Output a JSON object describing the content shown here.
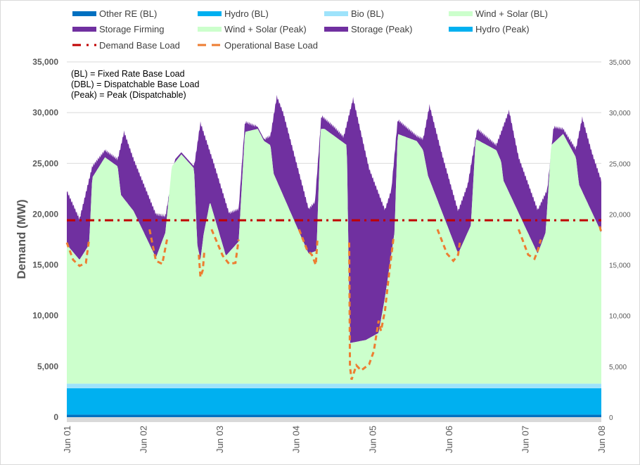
{
  "chart_data": {
    "type": "area",
    "stacked": true,
    "ylabel": "Demand (MW)",
    "ylim": [
      0,
      35000
    ],
    "y_ticks": [
      "0",
      "5,000",
      "10,000",
      "15,000",
      "20,000",
      "25,000",
      "30,000",
      "35,000"
    ],
    "y_ticks_right": [
      "0",
      "5,000",
      "10,000",
      "15,000",
      "20,000",
      "25,000",
      "30,000",
      "35,000"
    ],
    "x_ticks": [
      "Jun 01",
      "Jun 02",
      "Jun 03",
      "Jun 04",
      "Jun 05",
      "Jun 06",
      "Jun 07",
      "Jun 08"
    ],
    "xlim": [
      "Jun 01 00:00",
      "Jun 08 00:00"
    ],
    "grid": true,
    "legend_position": "top",
    "notes": [
      "(BL) = Fixed Rate Base Load",
      "(DBL) = Dispatchable Base Load",
      "(Peak) = Peak (Dispatchable)"
    ],
    "legend": [
      {
        "name": "Other RE (BL)",
        "color": "#0070c0",
        "style": "band"
      },
      {
        "name": "Hydro (BL)",
        "color": "#00b0f0",
        "style": "band"
      },
      {
        "name": "Bio (BL)",
        "color": "#9ee3fb",
        "style": "band"
      },
      {
        "name": "Wind + Solar (BL)",
        "color": "#ccffcc",
        "style": "band"
      },
      {
        "name": "Storage Firming",
        "color": "#7030a0",
        "style": "band"
      },
      {
        "name": "Wind + Solar (Peak)",
        "color": "#ccffcc",
        "style": "band"
      },
      {
        "name": "Storage (Peak)",
        "color": "#7030a0",
        "style": "band"
      },
      {
        "name": "Hydro (Peak)",
        "color": "#00b0f0",
        "style": "band"
      },
      {
        "name": "Demand Base Load",
        "color": "#c00000",
        "style": "dashdot"
      },
      {
        "name": "Operational Base Load",
        "color": "#ed7d31",
        "style": "dash"
      }
    ],
    "constant_series": [
      {
        "name": "Other RE (BL)",
        "value": 250
      },
      {
        "name": "Hydro (BL)",
        "value": 2600
      },
      {
        "name": "Bio (BL)",
        "value": 450
      }
    ],
    "stack_level_series": [
      {
        "name": "Wind + Solar (BL)",
        "points": [
          [
            "Jun 01 00:00",
            17000
          ],
          [
            "Jun 01 04:00",
            15500
          ],
          [
            "Jun 01 07:00",
            17000
          ],
          [
            "Jun 01 08:00",
            23600
          ],
          [
            "Jun 01 12:00",
            25600
          ],
          [
            "Jun 01 16:00",
            24700
          ],
          [
            "Jun 01 17:00",
            21900
          ],
          [
            "Jun 01 21:00",
            20300
          ],
          [
            "Jun 02 04:00",
            15700
          ],
          [
            "Jun 02 07:00",
            18200
          ],
          [
            "Jun 02 09:00",
            24700
          ],
          [
            "Jun 02 12:00",
            25900
          ],
          [
            "Jun 02 16:00",
            24500
          ],
          [
            "Jun 02 17:00",
            17000
          ],
          [
            "Jun 02 18:00",
            15500
          ],
          [
            "Jun 02 19:00",
            18000
          ],
          [
            "Jun 02 21:00",
            21200
          ],
          [
            "Jun 03 02:00",
            15900
          ],
          [
            "Jun 03 06:00",
            17300
          ],
          [
            "Jun 03 08:00",
            28100
          ],
          [
            "Jun 03 12:00",
            28400
          ],
          [
            "Jun 03 14:00",
            27200
          ],
          [
            "Jun 03 16:00",
            26800
          ],
          [
            "Jun 03 17:00",
            24000
          ],
          [
            "Jun 04 04:00",
            16100
          ],
          [
            "Jun 04 06:30",
            16400
          ],
          [
            "Jun 04 07:45",
            28400
          ],
          [
            "Jun 04 09:00",
            28400
          ],
          [
            "Jun 04 16:00",
            26800
          ],
          [
            "Jun 04 17:00",
            7300
          ],
          [
            "Jun 04 22:00",
            7600
          ],
          [
            "Jun 05 02:00",
            8300
          ],
          [
            "Jun 05 04:00",
            11800
          ],
          [
            "Jun 05 07:00",
            18200
          ],
          [
            "Jun 05 08:00",
            27900
          ],
          [
            "Jun 05 14:00",
            27200
          ],
          [
            "Jun 05 16:00",
            26300
          ],
          [
            "Jun 05 17:30",
            23800
          ],
          [
            "Jun 06 03:00",
            16100
          ],
          [
            "Jun 06 07:00",
            18900
          ],
          [
            "Jun 06 08:30",
            27400
          ],
          [
            "Jun 06 15:00",
            26300
          ],
          [
            "Jun 06 16:30",
            25200
          ],
          [
            "Jun 06 17:15",
            23300
          ],
          [
            "Jun 07 04:00",
            16100
          ],
          [
            "Jun 07 06:30",
            18200
          ],
          [
            "Jun 07 08:15",
            26800
          ],
          [
            "Jun 07 12:00",
            27900
          ],
          [
            "Jun 07 16:00",
            25600
          ],
          [
            "Jun 07 17:00",
            22900
          ],
          [
            "Jun 08 00:00",
            18200
          ]
        ]
      },
      {
        "name": "Storage Firming",
        "points": [
          [
            "Jun 01 00:00",
            22300
          ],
          [
            "Jun 01 04:00",
            19500
          ],
          [
            "Jun 01 08:00",
            24700
          ],
          [
            "Jun 01 12:00",
            26300
          ],
          [
            "Jun 01 16:00",
            25400
          ],
          [
            "Jun 01 18:00",
            28100
          ],
          [
            "Jun 01 21:00",
            25400
          ],
          [
            "Jun 02 04:00",
            20000
          ],
          [
            "Jun 02 07:00",
            19800
          ],
          [
            "Jun 02 10:00",
            25400
          ],
          [
            "Jun 02 12:00",
            26100
          ],
          [
            "Jun 02 16:00",
            24700
          ],
          [
            "Jun 02 18:00",
            29000
          ],
          [
            "Jun 02 22:00",
            25200
          ],
          [
            "Jun 03 03:00",
            20100
          ],
          [
            "Jun 03 06:00",
            20500
          ],
          [
            "Jun 03 08:00",
            29100
          ],
          [
            "Jun 03 12:00",
            28600
          ],
          [
            "Jun 03 14:00",
            27400
          ],
          [
            "Jun 03 16:00",
            27700
          ],
          [
            "Jun 03 18:00",
            31600
          ],
          [
            "Jun 03 20:00",
            30000
          ],
          [
            "Jun 04 04:00",
            20500
          ],
          [
            "Jun 04 06:00",
            21200
          ],
          [
            "Jun 04 08:00",
            29700
          ],
          [
            "Jun 04 12:00",
            28600
          ],
          [
            "Jun 04 15:00",
            27600
          ],
          [
            "Jun 04 18:00",
            31400
          ],
          [
            "Jun 04 23:00",
            24500
          ],
          [
            "Jun 05 04:00",
            20400
          ],
          [
            "Jun 05 06:00",
            22400
          ],
          [
            "Jun 05 08:00",
            29300
          ],
          [
            "Jun 05 14:00",
            27700
          ],
          [
            "Jun 05 16:00",
            27400
          ],
          [
            "Jun 05 18:00",
            30700
          ],
          [
            "Jun 05 22:00",
            25800
          ],
          [
            "Jun 06 03:00",
            20300
          ],
          [
            "Jun 06 06:00",
            22900
          ],
          [
            "Jun 06 09:00",
            28400
          ],
          [
            "Jun 06 15:00",
            26800
          ],
          [
            "Jun 06 19:00",
            30200
          ],
          [
            "Jun 06 22:00",
            25600
          ],
          [
            "Jun 07 04:00",
            20400
          ],
          [
            "Jun 07 07:00",
            22400
          ],
          [
            "Jun 07 09:00",
            28600
          ],
          [
            "Jun 07 12:00",
            28400
          ],
          [
            "Jun 07 16:00",
            26400
          ],
          [
            "Jun 07 18:00",
            29500
          ],
          [
            "Jun 07 21:00",
            26100
          ],
          [
            "Jun 08 00:00",
            23300
          ]
        ]
      }
    ],
    "demand_base_load": 19400,
    "operational_base_load_segments": [
      [
        [
          "Jun 01 00:00",
          17200
        ],
        [
          "Jun 01 02:00",
          15500
        ],
        [
          "Jun 01 04:00",
          14900
        ],
        [
          "Jun 01 06:00",
          15200
        ],
        [
          "Jun 01 07:00",
          17500
        ]
      ],
      [
        [
          "Jun 02 02:00",
          18500
        ],
        [
          "Jun 02 04:00",
          15400
        ],
        [
          "Jun 02 06:00",
          15100
        ],
        [
          "Jun 02 07:30",
          17500
        ]
      ],
      [
        [
          "Jun 02 17:30",
          16000
        ],
        [
          "Jun 02 18:00",
          13800
        ],
        [
          "Jun 02 18:45",
          14500
        ],
        [
          "Jun 02 19:15",
          16500
        ]
      ],
      [
        [
          "Jun 02 21:30",
          18500
        ],
        [
          "Jun 03 01:00",
          15900
        ],
        [
          "Jun 03 03:00",
          15100
        ],
        [
          "Jun 03 05:00",
          15200
        ],
        [
          "Jun 03 06:00",
          17500
        ]
      ],
      [
        [
          "Jun 04 01:00",
          18500
        ],
        [
          "Jun 04 03:30",
          16500
        ],
        [
          "Jun 04 05:00",
          16000
        ],
        [
          "Jun 04 06:15",
          15000
        ],
        [
          "Jun 04 06:45",
          17400
        ]
      ],
      [
        [
          "Jun 04 16:45",
          17200
        ],
        [
          "Jun 04 17:00",
          5000
        ],
        [
          "Jun 04 17:30",
          3700
        ],
        [
          "Jun 04 19:00",
          5100
        ],
        [
          "Jun 04 20:30",
          4600
        ],
        [
          "Jun 04 23:00",
          5200
        ],
        [
          "Jun 05 00:30",
          6500
        ],
        [
          "Jun 05 02:00",
          9500
        ],
        [
          "Jun 05 02:45",
          8500
        ],
        [
          "Jun 05 04:00",
          10500
        ],
        [
          "Jun 05 05:15",
          14000
        ],
        [
          "Jun 05 06:45",
          17800
        ]
      ],
      [
        [
          "Jun 05 20:30",
          18500
        ],
        [
          "Jun 05 23:30",
          16100
        ],
        [
          "Jun 06 01:30",
          15400
        ],
        [
          "Jun 06 03:00",
          16000
        ],
        [
          "Jun 06 03:40",
          17500
        ]
      ],
      [
        [
          "Jun 06 22:00",
          18500
        ],
        [
          "Jun 07 01:00",
          16000
        ],
        [
          "Jun 07 03:00",
          15600
        ],
        [
          "Jun 07 04:00",
          16400
        ],
        [
          "Jun 07 05:00",
          17500
        ]
      ],
      [
        [
          "Jun 07 23:30",
          18800
        ],
        [
          "Jun 08 00:00",
          18200
        ]
      ]
    ]
  }
}
